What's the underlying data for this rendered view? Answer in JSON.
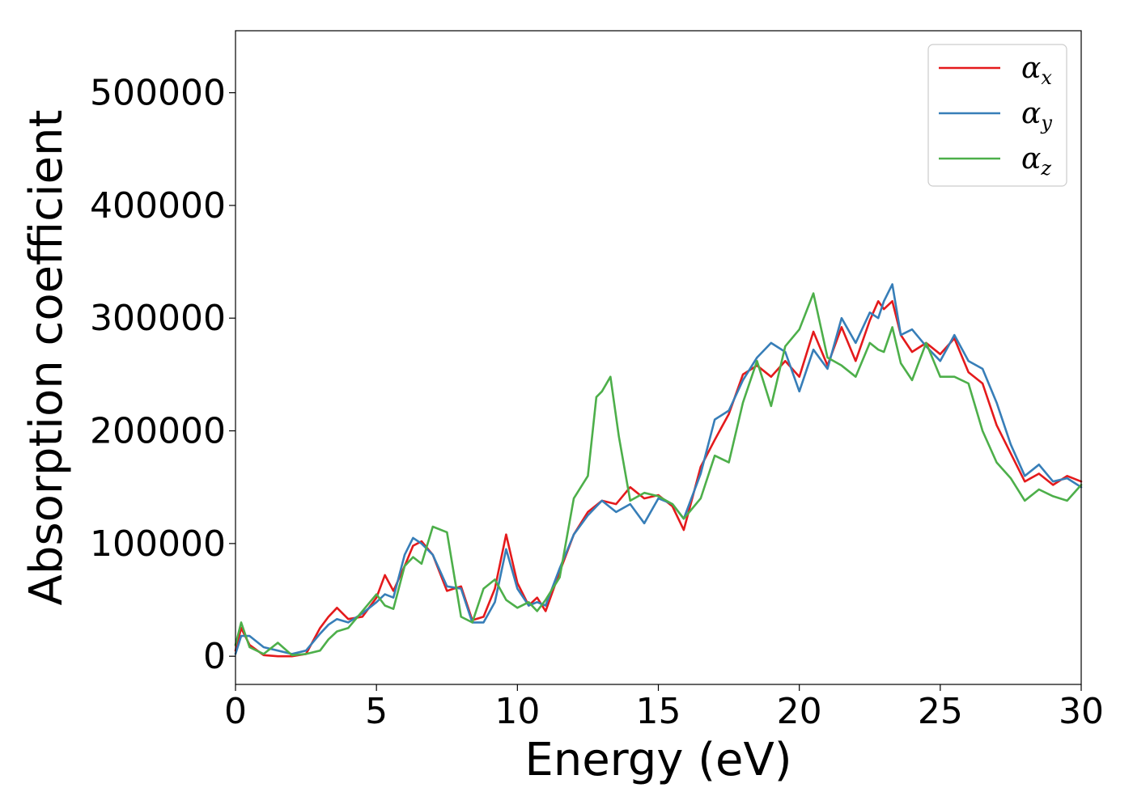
{
  "chart_data": {
    "type": "line",
    "title": "",
    "xlabel": "Energy (eV)",
    "ylabel": "Absorption coefficient",
    "xlim": [
      0,
      30
    ],
    "ylim": [
      -25000,
      555000
    ],
    "xticks": [
      0,
      5,
      10,
      15,
      20,
      25,
      30
    ],
    "yticks": [
      0,
      100000,
      200000,
      300000,
      400000,
      500000
    ],
    "grid": false,
    "legend_position": "top-right",
    "series": [
      {
        "name": "αx",
        "symbol": "α",
        "subscript": "x",
        "color": "#e41a1c",
        "x": [
          0,
          0.2,
          0.5,
          1,
          1.5,
          2,
          2.5,
          3,
          3.3,
          3.6,
          4,
          4.5,
          5,
          5.3,
          5.6,
          6,
          6.3,
          6.6,
          7,
          7.5,
          8,
          8.4,
          8.8,
          9.2,
          9.6,
          10,
          10.4,
          10.7,
          11,
          11.5,
          12,
          12.5,
          13,
          13.5,
          14,
          14.5,
          15,
          15.5,
          15.9,
          16.5,
          17,
          17.5,
          18,
          18.5,
          19,
          19.5,
          20,
          20.5,
          21,
          21.5,
          22,
          22.5,
          22.8,
          23,
          23.3,
          23.6,
          24,
          24.5,
          25,
          25.5,
          26,
          26.5,
          27,
          27.5,
          28,
          28.5,
          29,
          29.5,
          30
        ],
        "y": [
          5000,
          25000,
          10000,
          1000,
          0,
          0,
          2000,
          25000,
          35000,
          43000,
          33000,
          35000,
          52000,
          72000,
          58000,
          80000,
          98000,
          102000,
          90000,
          58000,
          62000,
          32000,
          35000,
          60000,
          108000,
          65000,
          45000,
          52000,
          40000,
          75000,
          108000,
          128000,
          138000,
          135000,
          150000,
          140000,
          143000,
          133000,
          112000,
          168000,
          192000,
          215000,
          250000,
          258000,
          248000,
          262000,
          248000,
          288000,
          258000,
          292000,
          262000,
          298000,
          315000,
          308000,
          315000,
          285000,
          270000,
          278000,
          268000,
          282000,
          252000,
          242000,
          205000,
          180000,
          155000,
          162000,
          152000,
          160000,
          155000
        ]
      },
      {
        "name": "αy",
        "symbol": "α",
        "subscript": "y",
        "color": "#377eb8",
        "x": [
          0,
          0.2,
          0.5,
          1,
          1.5,
          2,
          2.5,
          3,
          3.3,
          3.6,
          4,
          4.5,
          5,
          5.3,
          5.6,
          6,
          6.3,
          6.6,
          7,
          7.5,
          8,
          8.4,
          8.8,
          9.2,
          9.6,
          10,
          10.4,
          10.7,
          11,
          11.5,
          12,
          12.5,
          13,
          13.5,
          14,
          14.5,
          15,
          15.5,
          15.9,
          16.5,
          17,
          17.5,
          18,
          18.5,
          19,
          19.5,
          20,
          20.5,
          21,
          21.5,
          22,
          22.5,
          22.8,
          23,
          23.3,
          23.6,
          24,
          24.5,
          25,
          25.5,
          26,
          26.5,
          27,
          27.5,
          28,
          28.5,
          29,
          29.5,
          30
        ],
        "y": [
          2000,
          18000,
          18000,
          8000,
          5000,
          2000,
          5000,
          20000,
          28000,
          33000,
          30000,
          38000,
          48000,
          55000,
          52000,
          90000,
          105000,
          100000,
          90000,
          62000,
          60000,
          30000,
          30000,
          48000,
          95000,
          60000,
          45000,
          48000,
          45000,
          78000,
          108000,
          125000,
          138000,
          128000,
          135000,
          118000,
          140000,
          135000,
          122000,
          162000,
          210000,
          218000,
          245000,
          265000,
          278000,
          270000,
          235000,
          272000,
          255000,
          300000,
          278000,
          305000,
          300000,
          315000,
          330000,
          285000,
          290000,
          275000,
          262000,
          285000,
          262000,
          255000,
          225000,
          188000,
          160000,
          170000,
          155000,
          158000,
          150000
        ]
      },
      {
        "name": "αz",
        "symbol": "α",
        "subscript": "z",
        "color": "#4daf4a",
        "x": [
          0,
          0.2,
          0.5,
          1,
          1.5,
          2,
          2.5,
          3,
          3.3,
          3.6,
          4,
          4.5,
          5,
          5.3,
          5.6,
          6,
          6.3,
          6.6,
          7,
          7.5,
          8,
          8.4,
          8.8,
          9.2,
          9.6,
          10,
          10.4,
          10.7,
          11,
          11.5,
          12,
          12.5,
          12.8,
          13,
          13.3,
          13.6,
          14,
          14.5,
          15,
          15.5,
          15.9,
          16.5,
          17,
          17.5,
          18,
          18.5,
          19,
          19.5,
          20,
          20.5,
          21,
          21.5,
          22,
          22.5,
          22.8,
          23,
          23.3,
          23.6,
          24,
          24.5,
          25,
          25.5,
          26,
          26.5,
          27,
          27.5,
          28,
          28.5,
          29,
          29.5,
          30
        ],
        "y": [
          10000,
          30000,
          8000,
          2000,
          12000,
          1000,
          2000,
          5000,
          15000,
          22000,
          25000,
          40000,
          55000,
          45000,
          42000,
          80000,
          88000,
          82000,
          115000,
          110000,
          35000,
          30000,
          60000,
          68000,
          50000,
          43000,
          48000,
          40000,
          50000,
          70000,
          140000,
          160000,
          230000,
          235000,
          248000,
          195000,
          138000,
          145000,
          142000,
          135000,
          122000,
          140000,
          178000,
          172000,
          225000,
          262000,
          222000,
          275000,
          290000,
          322000,
          265000,
          258000,
          248000,
          278000,
          272000,
          270000,
          292000,
          260000,
          245000,
          278000,
          248000,
          248000,
          242000,
          200000,
          172000,
          158000,
          138000,
          148000,
          142000,
          138000,
          152000
        ]
      }
    ]
  }
}
